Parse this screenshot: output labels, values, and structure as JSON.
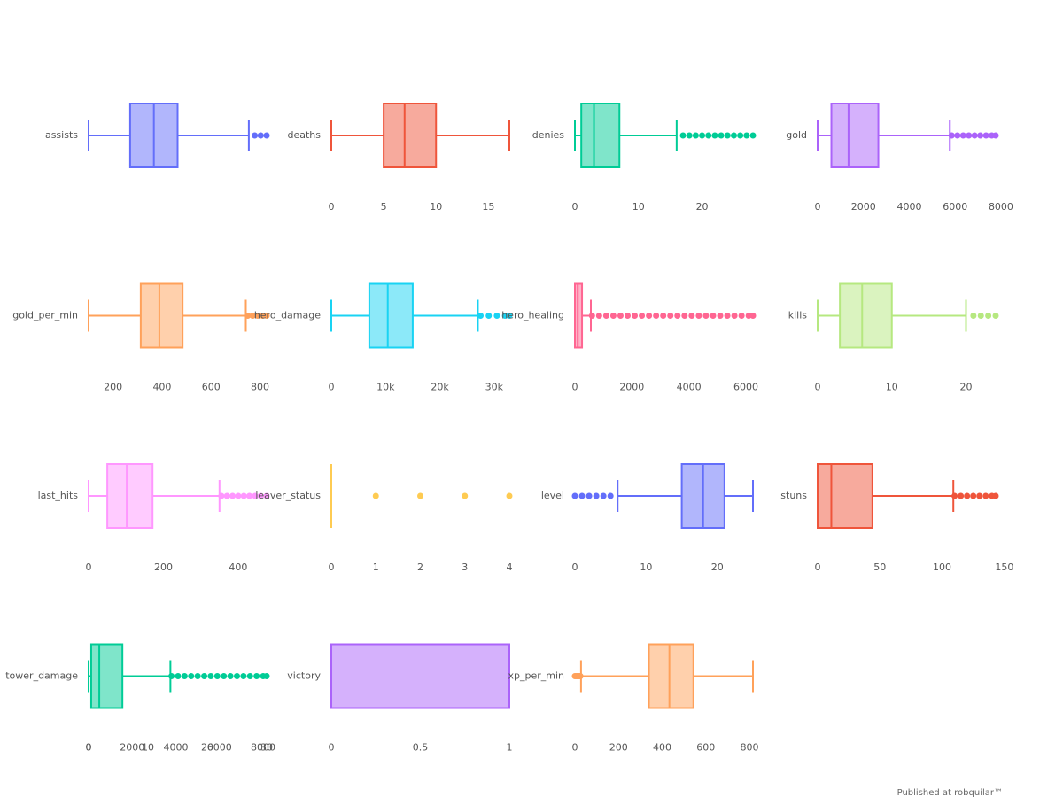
{
  "chart_data": [
    {
      "type": "box",
      "name": "assists",
      "color": "#636efa",
      "min": 0,
      "q1": 7,
      "median": 11,
      "q3": 15,
      "max": 27,
      "outliers": [
        28,
        29,
        30
      ],
      "xlim": [
        0,
        30
      ],
      "xticks": [
        0,
        10,
        20,
        30
      ],
      "axis_overlaid_on": "tower_damage"
    },
    {
      "type": "box",
      "name": "deaths",
      "color": "#ef553b",
      "min": 0,
      "q1": 5,
      "median": 7,
      "q3": 10,
      "max": 17,
      "outliers": [],
      "xlim": [
        0,
        17
      ],
      "xticks": [
        0,
        5,
        10,
        15
      ]
    },
    {
      "type": "box",
      "name": "denies",
      "color": "#00cc96",
      "min": 0,
      "q1": 1,
      "median": 3,
      "q3": 7,
      "max": 16,
      "outliers": [
        17,
        18,
        19,
        20,
        21,
        22,
        23,
        24,
        25,
        26,
        27,
        28
      ],
      "xlim": [
        0,
        28
      ],
      "xticks": [
        0,
        10,
        20
      ]
    },
    {
      "type": "box",
      "name": "gold",
      "color": "#ab63fa",
      "min": 0,
      "q1": 600,
      "median": 1350,
      "q3": 2650,
      "max": 5770,
      "outliers": [
        5850,
        6100,
        6350,
        6600,
        6850,
        7100,
        7350,
        7600,
        7770
      ],
      "xlim": [
        0,
        7770
      ],
      "xticks": [
        0,
        2000,
        4000,
        6000,
        8000
      ]
    },
    {
      "type": "box",
      "name": "gold_per_min",
      "color": "#ffa15a",
      "min": 100,
      "q1": 313,
      "median": 389,
      "q3": 484,
      "max": 742,
      "outliers": [
        750,
        770,
        790,
        810,
        827
      ],
      "xlim": [
        100,
        827
      ],
      "xticks": [
        200,
        400,
        600,
        800
      ]
    },
    {
      "type": "box",
      "name": "hero_damage",
      "color": "#19d3f3",
      "min": 0,
      "q1": 7000,
      "median": 10400,
      "q3": 15000,
      "max": 27000,
      "outliers": [
        27500,
        29000,
        30500,
        32000,
        32800
      ],
      "xlim": [
        0,
        32800
      ],
      "xticks": [
        {
          "value": 0,
          "label": "0"
        },
        {
          "value": 10000,
          "label": "10k"
        },
        {
          "value": 20000,
          "label": "20k"
        },
        {
          "value": 30000,
          "label": "30k"
        }
      ]
    },
    {
      "type": "box",
      "name": "hero_healing",
      "color": "#ff6692",
      "min": 0,
      "q1": 0,
      "median": 100,
      "q3": 250,
      "max": 560,
      "outliers": [
        600,
        850,
        1100,
        1350,
        1600,
        1850,
        2100,
        2350,
        2600,
        2850,
        3100,
        3350,
        3600,
        3850,
        4100,
        4350,
        4600,
        4850,
        5100,
        5350,
        5600,
        5850,
        6100,
        6250
      ],
      "xlim": [
        0,
        6250
      ],
      "xticks": [
        0,
        2000,
        4000,
        6000
      ]
    },
    {
      "type": "box",
      "name": "kills",
      "color": "#b6e880",
      "min": 0,
      "q1": 3,
      "median": 6,
      "q3": 10,
      "max": 20,
      "outliers": [
        21,
        22,
        23,
        24
      ],
      "xlim": [
        0,
        24
      ],
      "xticks": [
        0,
        10,
        20
      ]
    },
    {
      "type": "box",
      "name": "last_hits",
      "color": "#ff97ff",
      "min": 0,
      "q1": 50,
      "median": 102,
      "q3": 171,
      "max": 350,
      "outliers": [
        355,
        370,
        385,
        400,
        415,
        430,
        445,
        460,
        476
      ],
      "xlim": [
        0,
        476
      ],
      "xticks": [
        0,
        200,
        400
      ]
    },
    {
      "type": "box",
      "name": "leaver_status",
      "color": "#fecb52",
      "min": 0,
      "q1": 0,
      "median": 0,
      "q3": 0,
      "max": 0,
      "outliers": [
        1,
        2,
        3,
        4
      ],
      "xlim": [
        0,
        4
      ],
      "xticks": [
        0,
        1,
        2,
        3,
        4
      ]
    },
    {
      "type": "box",
      "name": "level",
      "color": "#636efa",
      "min": 6,
      "q1": 15,
      "median": 18,
      "q3": 21,
      "max": 25,
      "outliers": [
        0,
        1,
        2,
        3,
        4,
        5
      ],
      "xlim": [
        0,
        25
      ],
      "xticks": [
        0,
        10,
        20
      ]
    },
    {
      "type": "box",
      "name": "stuns",
      "color": "#ef553b",
      "min": 0,
      "q1": 0,
      "median": 11,
      "q3": 44,
      "max": 109,
      "outliers": [
        110,
        115,
        120,
        125,
        130,
        135,
        140,
        143
      ],
      "xlim": [
        0,
        143
      ],
      "xticks": [
        0,
        50,
        100,
        150
      ]
    },
    {
      "type": "box",
      "name": "tower_damage",
      "color": "#00cc96",
      "min": 0,
      "q1": 120,
      "median": 490,
      "q3": 1550,
      "max": 3750,
      "outliers": [
        3800,
        4100,
        4400,
        4700,
        5000,
        5300,
        5600,
        5900,
        6200,
        6500,
        6800,
        7100,
        7400,
        7700,
        8000,
        8160
      ],
      "xlim": [
        0,
        8160
      ],
      "xticks": [
        0,
        2000,
        4000,
        6000,
        8000
      ]
    },
    {
      "type": "box",
      "name": "victory",
      "color": "#ab63fa",
      "min": 0,
      "q1": 0,
      "median": 1,
      "q3": 1,
      "max": 1,
      "outliers": [],
      "xlim": [
        0,
        1
      ],
      "xticks": [
        0,
        0.5,
        1
      ]
    },
    {
      "type": "box",
      "name": "xp_per_min",
      "color": "#ffa15a",
      "min": 28,
      "q1": 339,
      "median": 433,
      "q3": 543,
      "max": 816,
      "outliers": [
        0,
        5,
        10,
        15,
        20,
        25
      ],
      "xlim": [
        0,
        816
      ],
      "xticks": [
        0,
        200,
        400,
        600,
        800
      ]
    }
  ],
  "footer": "Published at robquilar™"
}
